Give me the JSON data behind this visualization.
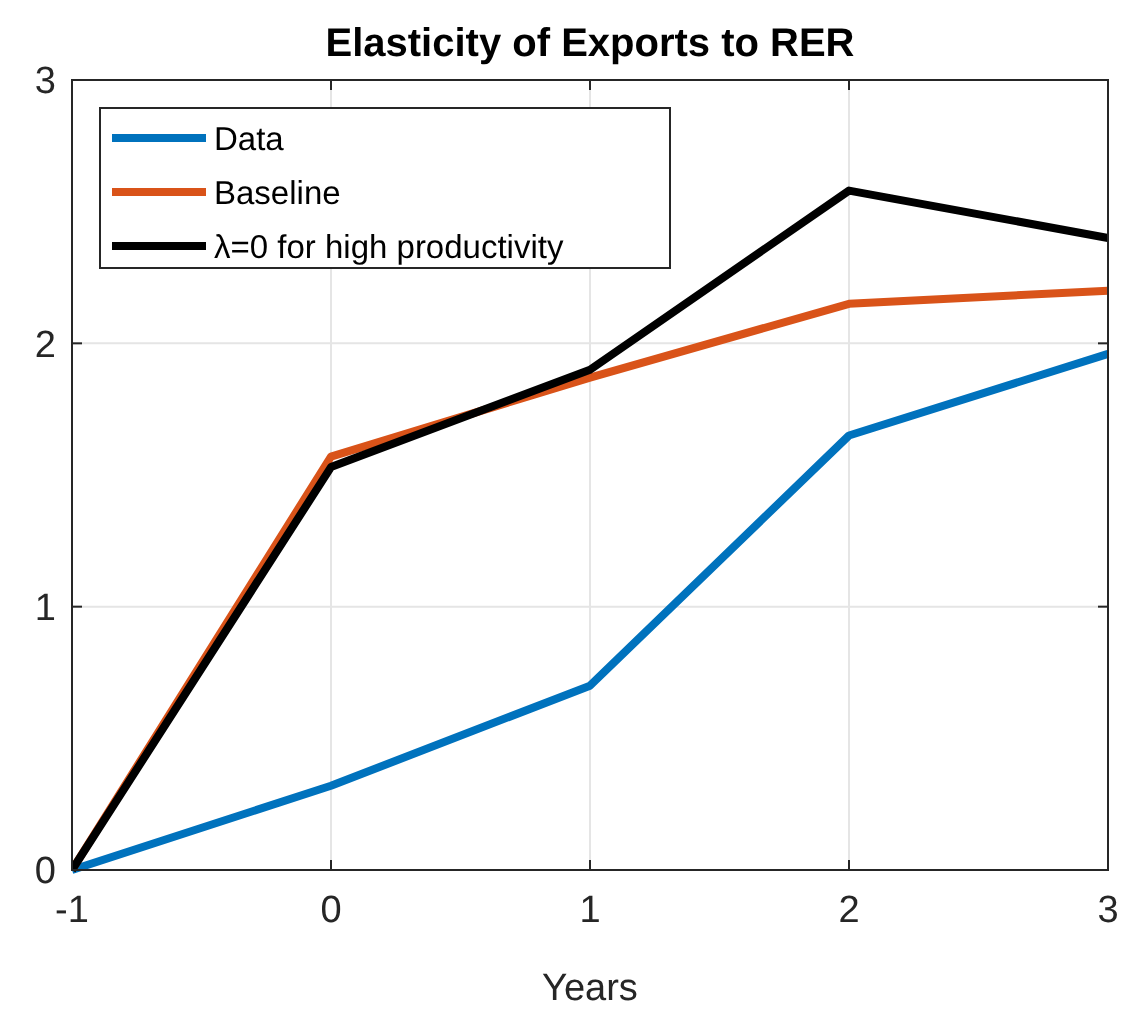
{
  "chart_data": {
    "type": "line",
    "title": "Elasticity of Exports to RER",
    "xlabel": "Years",
    "x": [
      -1,
      0,
      1,
      2,
      3
    ],
    "series": [
      {
        "name": "Data",
        "color": "#0072bd",
        "values": [
          0,
          0.32,
          0.7,
          1.65,
          1.96
        ]
      },
      {
        "name": "Baseline",
        "color": "#d95319",
        "values": [
          0,
          1.57,
          1.87,
          2.15,
          2.2
        ]
      },
      {
        "name": "λ=0 for high productivity",
        "color": "#000000",
        "values": [
          0,
          1.53,
          1.9,
          2.58,
          2.4
        ]
      }
    ],
    "xlim": [
      -1,
      3
    ],
    "xticks": [
      -1,
      0,
      1,
      2,
      3
    ],
    "ylim": [
      0,
      3
    ],
    "yticks": [
      0,
      1,
      2,
      3
    ],
    "grid": true,
    "legend": "top left",
    "marker": "none",
    "line_style": "solid"
  }
}
